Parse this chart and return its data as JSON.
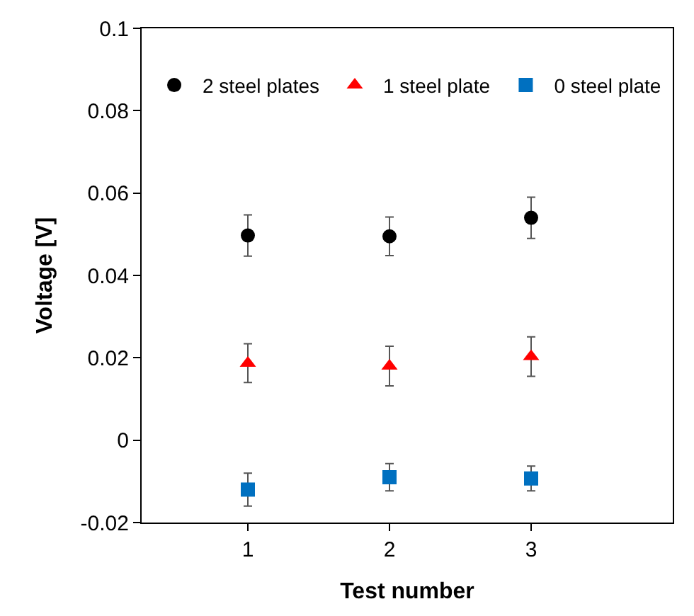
{
  "chart_data": {
    "type": "scatter",
    "xlabel": "Test number",
    "ylabel": "Voltage [V]",
    "x": [
      1,
      2,
      3
    ],
    "series": [
      {
        "name": "2 steel plates",
        "color": "#000000",
        "marker": "circle",
        "values": [
          0.0497,
          0.0495,
          0.054
        ],
        "errors": [
          0.005,
          0.0047,
          0.005
        ]
      },
      {
        "name": "1 steel plate",
        "color": "#ff0000",
        "marker": "triangle",
        "values": [
          0.0187,
          0.018,
          0.0203
        ],
        "errors": [
          0.0047,
          0.0048,
          0.0048
        ]
      },
      {
        "name": "0 steel plate",
        "color": "#0070c0",
        "marker": "square",
        "values": [
          -0.012,
          -0.009,
          -0.0093
        ],
        "errors": [
          0.004,
          0.0033,
          0.003
        ]
      }
    ],
    "xlim": [
      0.25,
      4
    ],
    "xticks": [
      1,
      2,
      3
    ],
    "ylim": [
      -0.02,
      0.1
    ],
    "yticks": [
      -0.02,
      0,
      0.02,
      0.04,
      0.06,
      0.08,
      0.1
    ],
    "legend": "top"
  }
}
